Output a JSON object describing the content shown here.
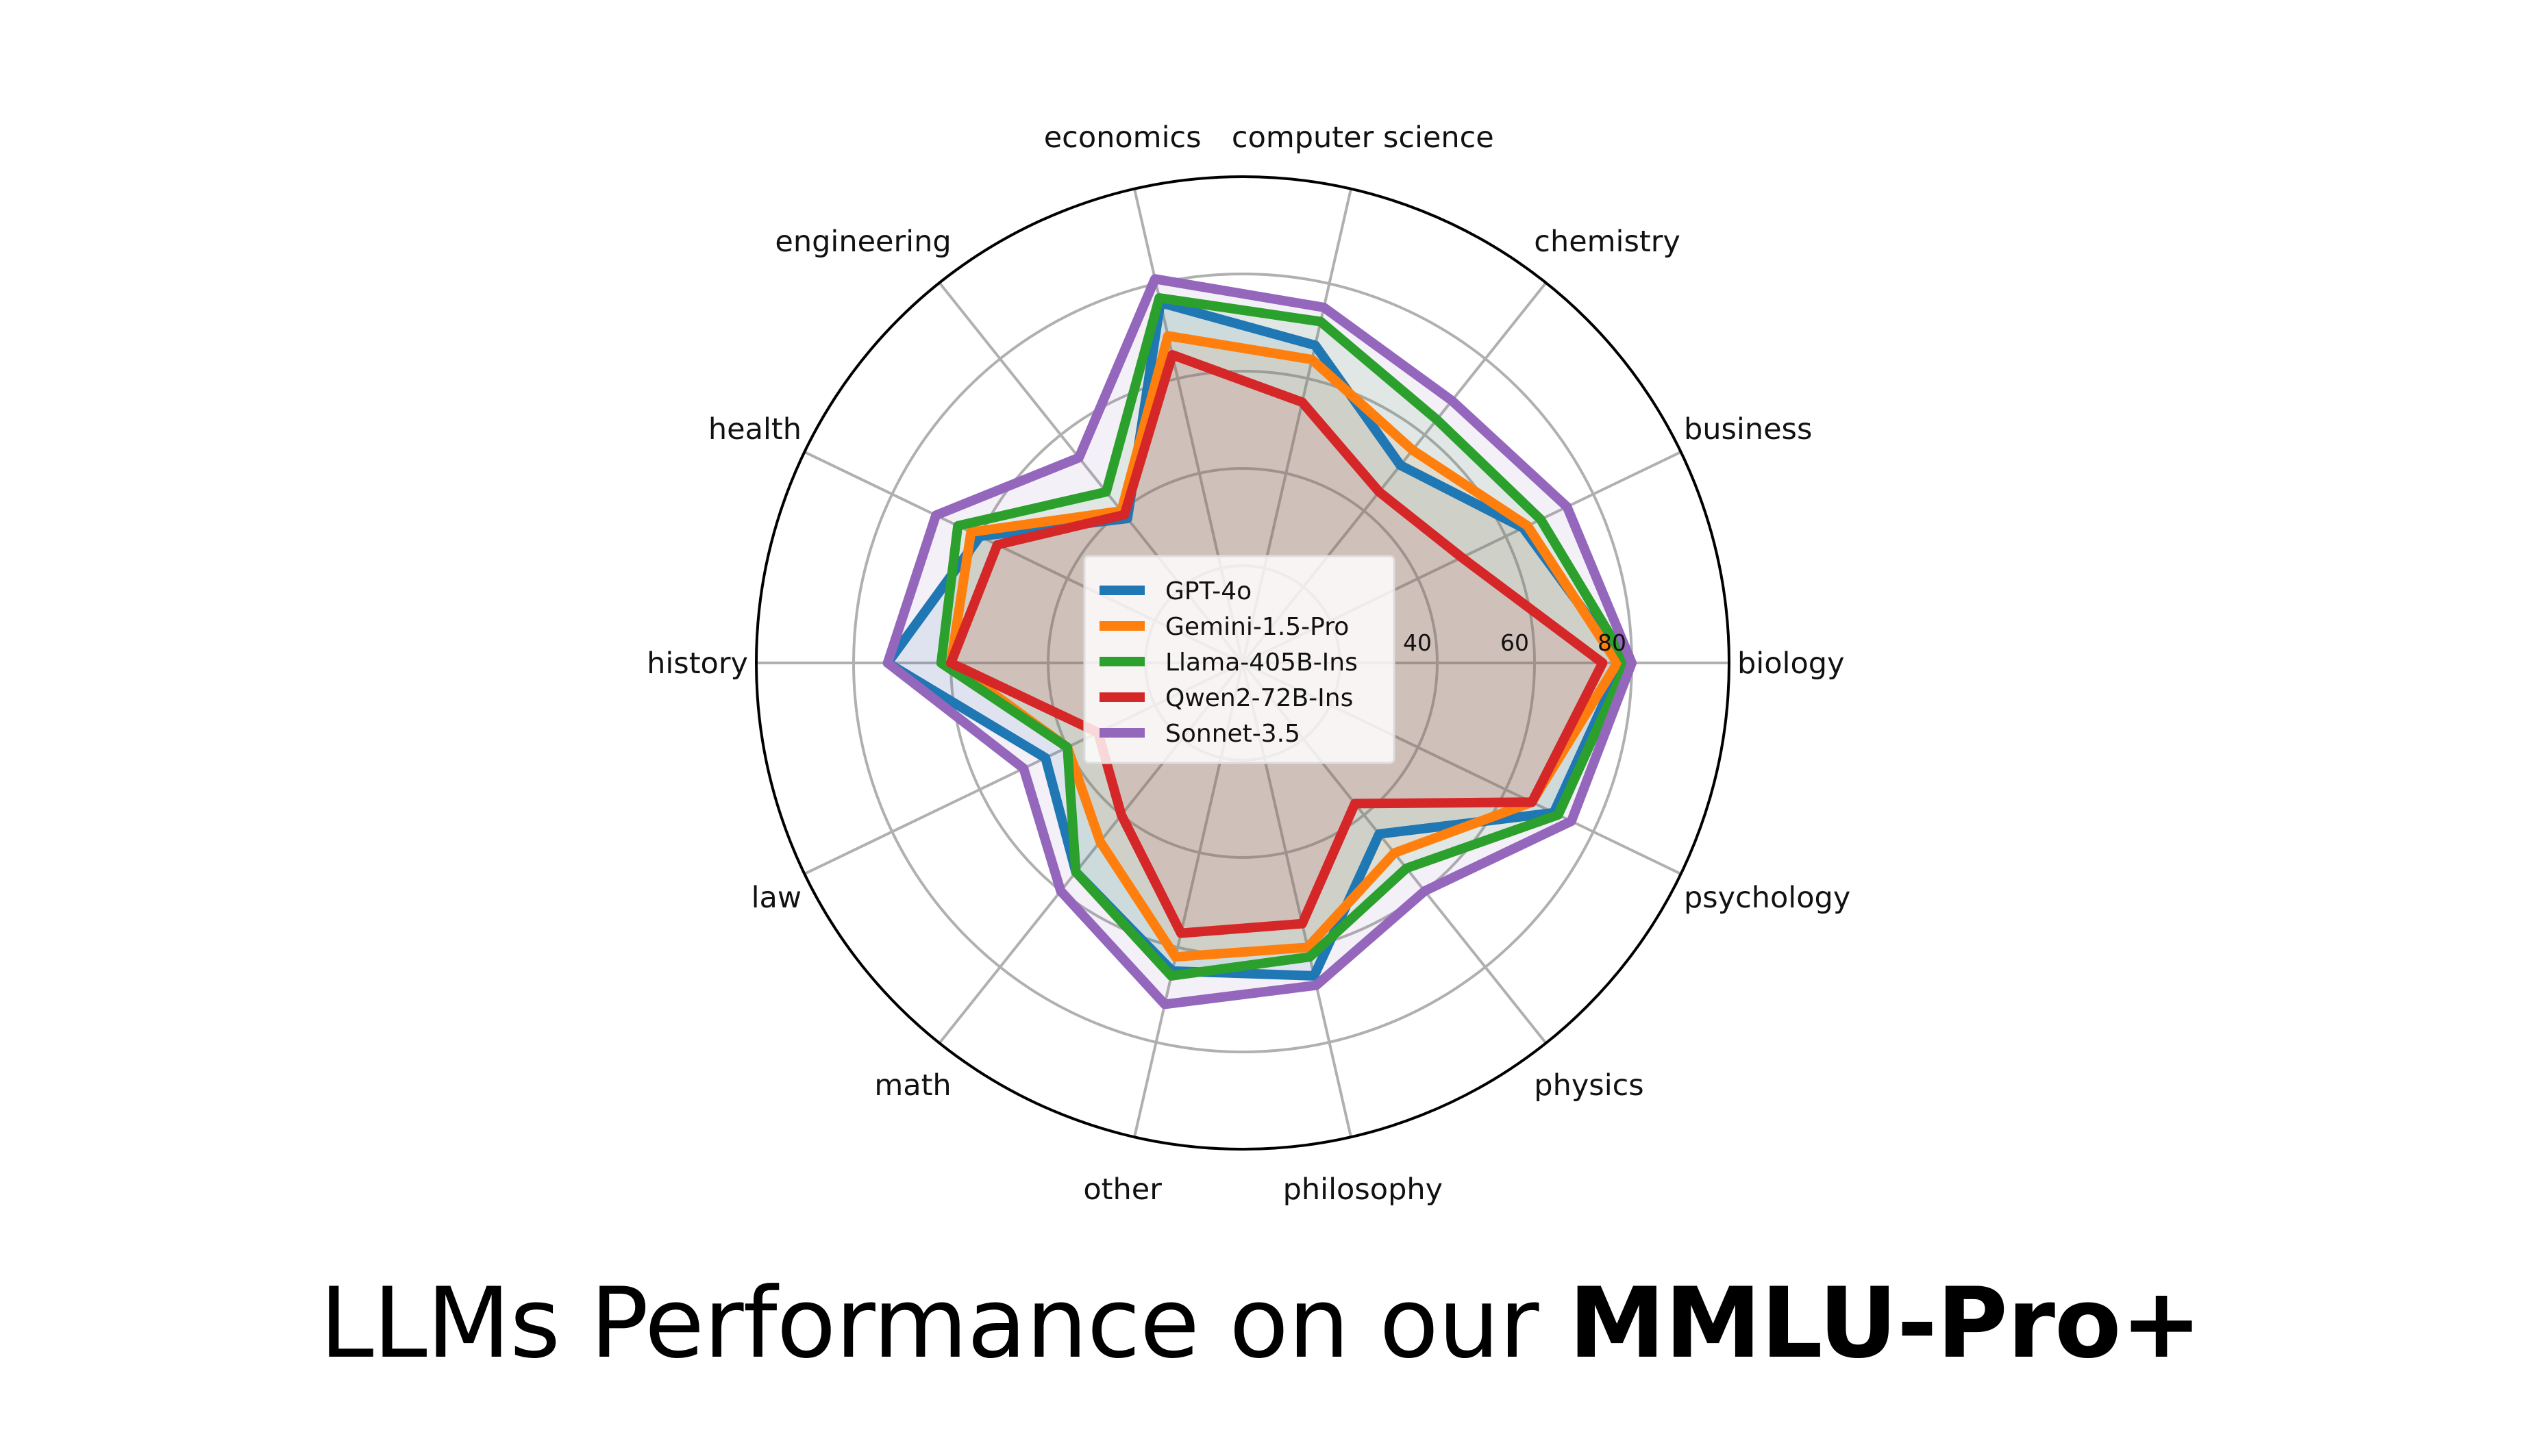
{
  "chart_data": {
    "type": "radar",
    "categories": [
      "biology",
      "business",
      "chemistry",
      "computer science",
      "economics",
      "engineering",
      "health",
      "history",
      "law",
      "math",
      "other",
      "philosophy",
      "physics",
      "psychology"
    ],
    "radial_ticks": [
      40,
      60,
      80
    ],
    "rlim": [
      0,
      100
    ],
    "grid": true,
    "legend_position": "center",
    "series": [
      {
        "name": "GPT-4o",
        "color": "#1f77b4",
        "values": [
          78,
          64,
          52,
          67,
          76,
          38,
          60,
          73,
          45,
          55,
          65,
          66,
          45,
          71
        ]
      },
      {
        "name": "Gemini-1.5-Pro",
        "color": "#ff7f0e",
        "values": [
          77,
          65,
          56,
          64,
          69,
          40,
          62,
          60,
          40,
          47,
          62,
          60,
          50,
          66
        ]
      },
      {
        "name": "Llama-405B-Ins",
        "color": "#2ca02c",
        "values": [
          79,
          68,
          64,
          72,
          77,
          45,
          65,
          62,
          40,
          55,
          66,
          62,
          54,
          72
        ]
      },
      {
        "name": "Qwen2-72B-Ins",
        "color": "#d62728",
        "values": [
          74,
          50,
          45,
          55,
          65,
          39,
          56,
          60,
          33,
          40,
          57,
          55,
          37,
          66
        ]
      },
      {
        "name": "Sonnet-3.5",
        "color": "#9467bd",
        "values": [
          80,
          74,
          69,
          75,
          81,
          54,
          70,
          73,
          50,
          60,
          72,
          68,
          60,
          75
        ]
      }
    ]
  },
  "caption": {
    "prefix": "LLMs Performance on our ",
    "bold": "MMLU-Pro+"
  }
}
